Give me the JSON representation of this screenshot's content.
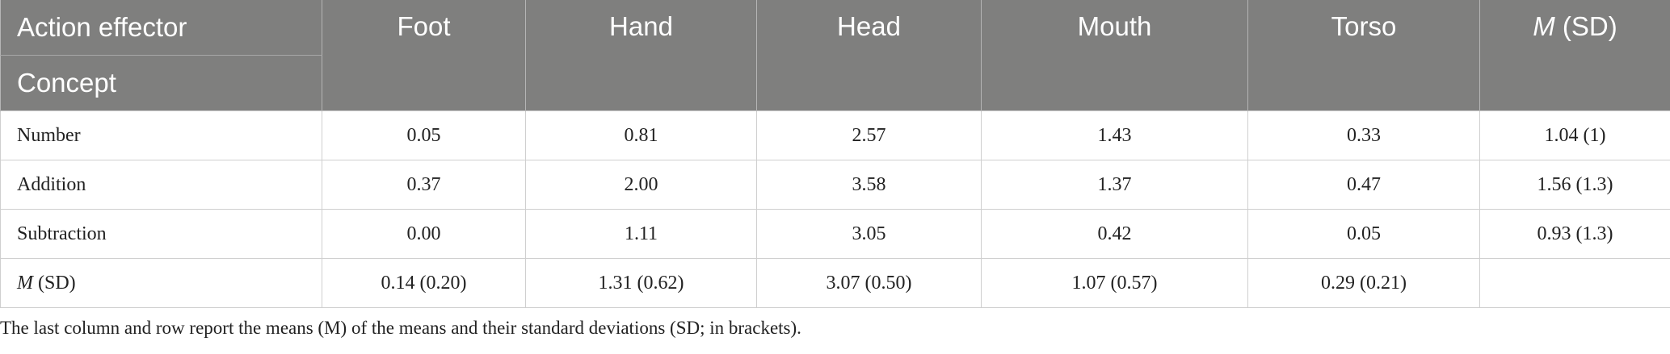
{
  "table": {
    "header": {
      "row_label": "Action effector",
      "col_label": "Concept",
      "columns": [
        [
          "Foot"
        ],
        [
          "Hand"
        ],
        [
          "Head"
        ],
        [
          "Mouth"
        ],
        [
          "Torso"
        ],
        [
          "M",
          " (SD)"
        ]
      ]
    },
    "rows": [
      {
        "label": [
          "Number"
        ],
        "cells": [
          "0.05",
          "0.81",
          "2.57",
          "1.43",
          "0.33",
          "1.04 (1)"
        ]
      },
      {
        "label": [
          "Addition"
        ],
        "cells": [
          "0.37",
          "2.00",
          "3.58",
          "1.37",
          "0.47",
          "1.56 (1.3)"
        ]
      },
      {
        "label": [
          "Subtraction"
        ],
        "cells": [
          "0.00",
          "1.11",
          "3.05",
          "0.42",
          "0.05",
          "0.93 (1.3)"
        ]
      },
      {
        "label": [
          "M",
          " (SD)"
        ],
        "cells": [
          "0.14 (0.20)",
          "1.31 (0.62)",
          "3.07 (0.50)",
          "1.07 (0.57)",
          "0.29 (0.21)"
        ]
      }
    ]
  },
  "footnote": "The last column and row report the means (M) of the means and their standard deviations (SD; in brackets)."
}
